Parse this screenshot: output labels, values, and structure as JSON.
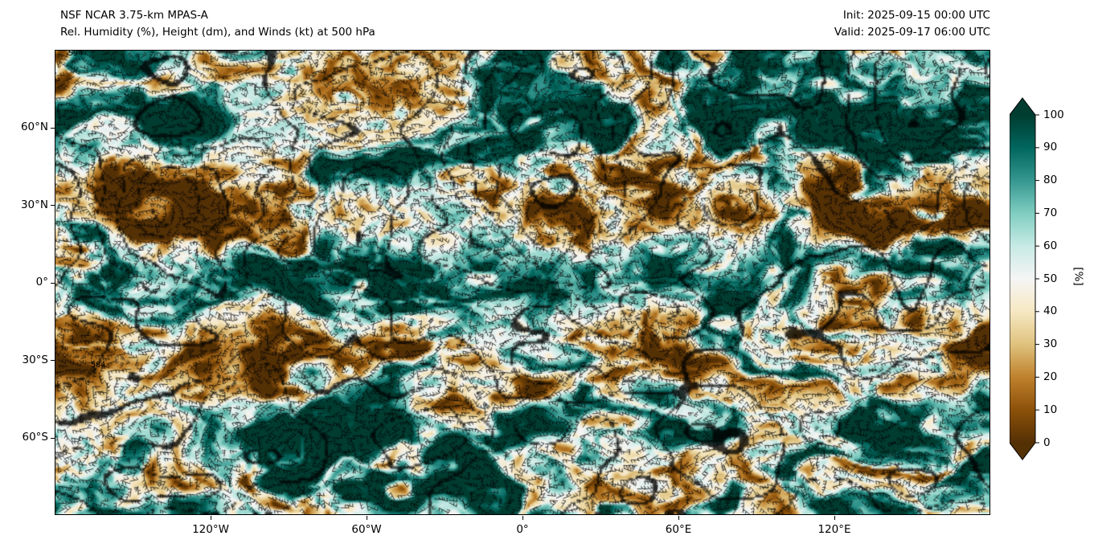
{
  "header": {
    "title_line1": "NSF NCAR 3.75-km MPAS-A",
    "title_line2": "Rel. Humidity (%), Height (dm), and Winds (kt) at 500 hPa",
    "init_time": "Init: 2025-09-15 00:00 UTC",
    "valid_time": "Valid: 2025-09-17 06:00 UTC"
  },
  "map": {
    "lat_ticks": [
      "60°N",
      "30°N",
      "0°",
      "30°S",
      "60°S"
    ],
    "lon_ticks": [
      "120°W",
      "60°W",
      "0°",
      "60°E",
      "120°E"
    ],
    "contour_labels": [
      "594",
      "584"
    ],
    "field": "Relative Humidity",
    "overlays": [
      "Height contours (dm)",
      "Wind barbs (kt)"
    ],
    "level": "500 hPa"
  },
  "colorbar": {
    "label": "[%]",
    "ticks": [
      "0",
      "10",
      "20",
      "30",
      "40",
      "50",
      "60",
      "70",
      "80",
      "90",
      "100"
    ],
    "tick_values": [
      0,
      10,
      20,
      30,
      40,
      50,
      60,
      70,
      80,
      90,
      100
    ],
    "range": [
      0,
      100
    ],
    "extend": "both",
    "colormap_name": "BrBG",
    "stops": [
      "#543005",
      "#8c510a",
      "#bf812d",
      "#dfc27d",
      "#f6e8c3",
      "#f5f5f5",
      "#c7eae5",
      "#80cdc1",
      "#35978f",
      "#01665e",
      "#003c30"
    ]
  }
}
